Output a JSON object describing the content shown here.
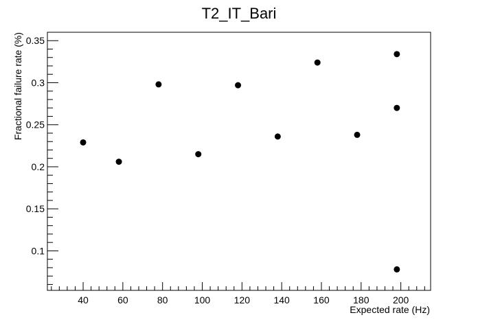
{
  "chart_data": {
    "type": "scatter",
    "title": "T2_IT_Bari",
    "xlabel": "Expected rate (Hz)",
    "ylabel": "Fractional failure rate (%)",
    "xlim": [
      22,
      215
    ],
    "ylim": [
      0.053,
      0.36
    ],
    "xticks": {
      "major": [
        40,
        60,
        80,
        100,
        120,
        140,
        160,
        180,
        200
      ],
      "minor_step": 4
    },
    "yticks": {
      "major": [
        0.1,
        0.15,
        0.2,
        0.25,
        0.3,
        0.35
      ],
      "minor_step": 0.01
    },
    "tick_labels_x": [
      "40",
      "60",
      "80",
      "100",
      "120",
      "140",
      "160",
      "180",
      "200"
    ],
    "tick_labels_y": [
      "0.1",
      "0.15",
      "0.2",
      "0.25",
      "0.3",
      "0.35"
    ],
    "grid": false,
    "legend": "none",
    "marker_color": "#000000",
    "points": [
      {
        "x": 40,
        "y": 0.229
      },
      {
        "x": 58,
        "y": 0.206
      },
      {
        "x": 78,
        "y": 0.298
      },
      {
        "x": 98,
        "y": 0.215
      },
      {
        "x": 118,
        "y": 0.297
      },
      {
        "x": 138,
        "y": 0.236
      },
      {
        "x": 158,
        "y": 0.324
      },
      {
        "x": 178,
        "y": 0.238
      },
      {
        "x": 198,
        "y": 0.334
      },
      {
        "x": 198,
        "y": 0.27
      },
      {
        "x": 198,
        "y": 0.078
      }
    ]
  }
}
